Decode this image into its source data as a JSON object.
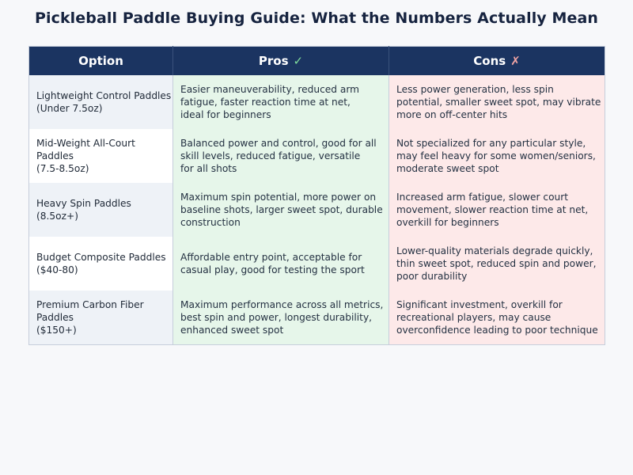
{
  "title": "Pickleball Paddle Buying Guide: What the Numbers Actually Mean",
  "headers": {
    "option": "Option",
    "pros": "Pros",
    "pros_symbol": "✓",
    "cons": "Cons",
    "cons_symbol": "✗"
  },
  "rows": [
    {
      "option": "Lightweight Control Paddles\n(Under 7.5oz)",
      "pros": "Easier maneuverability, reduced arm\nfatigue, faster reaction time at net,\nideal for beginners",
      "cons": "Less power generation, less spin\npotential, smaller sweet spot, may vibrate\nmore on off-center hits"
    },
    {
      "option": "Mid-Weight All-Court Paddles\n(7.5-8.5oz)",
      "pros": "Balanced power and control, good for all\nskill levels, reduced fatigue, versatile\nfor all shots",
      "cons": "Not specialized for any particular style,\nmay feel heavy for some women/seniors,\nmoderate sweet spot"
    },
    {
      "option": "Heavy Spin Paddles (8.5oz+)",
      "pros": "Maximum spin potential, more power on\nbaseline shots, larger sweet spot, durable\nconstruction",
      "cons": "Increased arm fatigue, slower court\nmovement, slower reaction time at net,\noverkill for beginners"
    },
    {
      "option": "Budget Composite Paddles\n($40-80)",
      "pros": "Affordable entry point, acceptable for\ncasual play, good for testing the sport",
      "cons": "Lower-quality materials degrade quickly,\nthin sweet spot, reduced spin and power,\npoor durability"
    },
    {
      "option": "Premium Carbon Fiber Paddles\n($150+)",
      "pros": "Maximum performance across all metrics,\nbest spin and power, longest durability,\nenhanced sweet spot",
      "cons": "Significant investment, overkill for\nrecreational players, may cause\noverconfidence leading to poor technique"
    }
  ]
}
